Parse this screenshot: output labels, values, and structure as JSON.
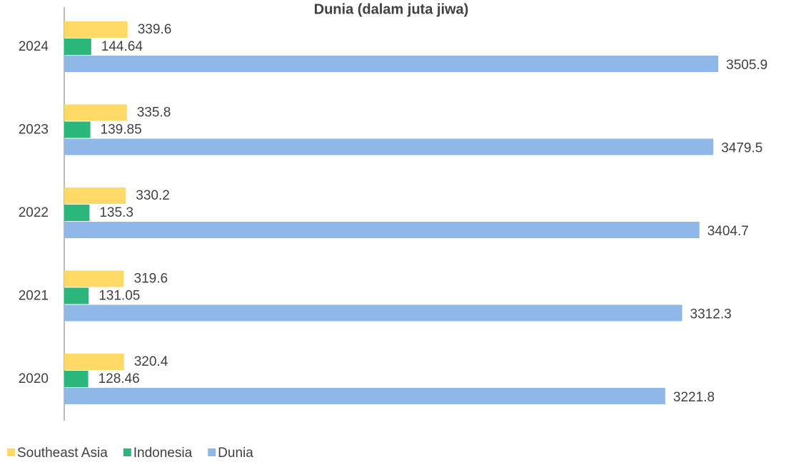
{
  "chart_data": {
    "type": "hbar",
    "title": "Dunia (dalam juta jiwa)",
    "categories": [
      "2020",
      "2021",
      "2022",
      "2023",
      "2024"
    ],
    "series": [
      {
        "name": "Southeast Asia",
        "color": "#ffd966",
        "values": [
          320.4,
          319.6,
          330.2,
          335.8,
          339.6
        ]
      },
      {
        "name": "Indonesia",
        "color": "#2bb67b",
        "values": [
          128.46,
          131.05,
          135.3,
          139.85,
          144.64
        ]
      },
      {
        "name": "Dunia",
        "color": "#8fb8e8",
        "values": [
          3221.8,
          3312.3,
          3404.7,
          3479.5,
          3505.9
        ]
      }
    ],
    "xlim": [
      0,
      3800
    ],
    "legend": "bottom-left"
  }
}
